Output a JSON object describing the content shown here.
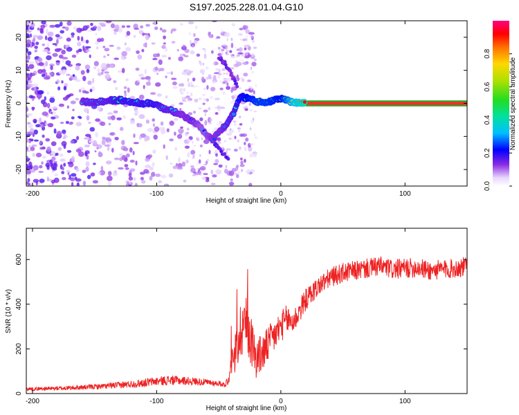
{
  "title": "S197.2025.228.01.04.G10",
  "colors": {
    "snr_line": "#ee2222",
    "axis": "#000000",
    "background": "#ffffff",
    "tone_band": "#ff2a2a",
    "tone_edge": "#22aa22"
  },
  "chart_data": [
    {
      "type": "heatmap",
      "title": "S197.2025.228.01.04.G10",
      "xlabel": "Height of straight line (km)",
      "ylabel": "Frequency (Hz)",
      "xlim": [
        -205,
        150
      ],
      "ylim": [
        -25,
        25
      ],
      "xticks": [
        -200,
        -100,
        0,
        100
      ],
      "xtick_labels": [
        "-200",
        "-100",
        "0",
        "100"
      ],
      "yticks": [
        -20,
        -10,
        0,
        10,
        20
      ],
      "ytick_labels": [
        "-20",
        "-10",
        "0",
        "10",
        "20"
      ],
      "colorbar": {
        "label": "Normalized spectral amplitude",
        "range": [
          0,
          1
        ],
        "ticks": [
          0.0,
          0.2,
          0.4,
          0.6,
          0.8
        ],
        "tick_labels": [
          "0.0",
          "0.2",
          "0.4",
          "0.6",
          "0.8"
        ]
      },
      "features": {
        "tone_ridge": [
          {
            "x": -160,
            "f": 0.5,
            "a": 0.3
          },
          {
            "x": -150,
            "f": 0.3,
            "a": 0.35
          },
          {
            "x": -140,
            "f": 0.8,
            "a": 0.35
          },
          {
            "x": -130,
            "f": 1.0,
            "a": 0.4
          },
          {
            "x": -120,
            "f": 0.5,
            "a": 0.4
          },
          {
            "x": -110,
            "f": 0.0,
            "a": 0.4
          },
          {
            "x": -100,
            "f": -0.2,
            "a": 0.4
          },
          {
            "x": -95,
            "f": -1.5,
            "a": 0.35
          },
          {
            "x": -88,
            "f": -2.2,
            "a": 0.35
          },
          {
            "x": -80,
            "f": -3.5,
            "a": 0.3
          },
          {
            "x": -70,
            "f": -5.5,
            "a": 0.3
          },
          {
            "x": -65,
            "f": -7.0,
            "a": 0.25
          },
          {
            "x": -60,
            "f": -9.5,
            "a": 0.25
          },
          {
            "x": -55,
            "f": -11.0,
            "a": 0.3
          },
          {
            "x": -48,
            "f": -8.0,
            "a": 0.3
          },
          {
            "x": -44,
            "f": -6.5,
            "a": 0.35
          },
          {
            "x": -38,
            "f": -3.0,
            "a": 0.35
          },
          {
            "x": -33,
            "f": 2.0,
            "a": 0.45
          },
          {
            "x": -25,
            "f": 1.5,
            "a": 0.5
          },
          {
            "x": -20,
            "f": 0.5,
            "a": 0.55
          },
          {
            "x": -10,
            "f": 0.5,
            "a": 0.55
          },
          {
            "x": 0,
            "f": 1.5,
            "a": 0.5
          },
          {
            "x": 10,
            "f": 0.2,
            "a": 0.7
          },
          {
            "x": 20,
            "f": 0.0,
            "a": 0.9
          },
          {
            "x": 150,
            "f": 0.0,
            "a": 0.95
          }
        ],
        "upper_streak": [
          {
            "x": -50,
            "f": 14
          },
          {
            "x": -45,
            "f": 12
          },
          {
            "x": -40,
            "f": 9
          },
          {
            "x": -35,
            "f": 5
          }
        ],
        "lower_streak": [
          {
            "x": -55,
            "f": -11
          },
          {
            "x": -50,
            "f": -14
          },
          {
            "x": -42,
            "f": -17
          }
        ]
      }
    },
    {
      "type": "line",
      "xlabel": "Height of straight line (km)",
      "ylabel": "SNR (10 * v/v)",
      "xlim": [
        -205,
        150
      ],
      "ylim": [
        0,
        740
      ],
      "xticks": [
        -200,
        -100,
        0,
        100
      ],
      "xtick_labels": [
        "-200",
        "-100",
        "0",
        "100"
      ],
      "yticks": [
        0,
        200,
        400,
        600
      ],
      "ytick_labels": [
        "0",
        "200",
        "400",
        "600"
      ],
      "series": [
        {
          "name": "SNR",
          "x": [
            -205,
            -190,
            -175,
            -160,
            -145,
            -130,
            -115,
            -100,
            -90,
            -80,
            -70,
            -60,
            -50,
            -45,
            -40,
            -35,
            -30,
            -25,
            -20,
            -15,
            -10,
            -5,
            0,
            5,
            10,
            20,
            30,
            40,
            50,
            60,
            70,
            80,
            90,
            100,
            110,
            120,
            130,
            140,
            150
          ],
          "values": [
            20,
            22,
            24,
            28,
            32,
            38,
            45,
            55,
            60,
            58,
            55,
            50,
            45,
            40,
            80,
            230,
            330,
            260,
            160,
            180,
            220,
            260,
            300,
            330,
            320,
            420,
            480,
            520,
            540,
            550,
            560,
            570,
            555,
            560,
            565,
            550,
            555,
            560,
            570
          ],
          "noise_amplitude": [
            8,
            8,
            10,
            10,
            12,
            15,
            18,
            20,
            22,
            20,
            18,
            15,
            12,
            12,
            40,
            120,
            150,
            120,
            90,
            90,
            80,
            80,
            70,
            70,
            60,
            50,
            45,
            45,
            45,
            45,
            45,
            45,
            45,
            45,
            45,
            45,
            45,
            45,
            45
          ]
        }
      ]
    }
  ]
}
